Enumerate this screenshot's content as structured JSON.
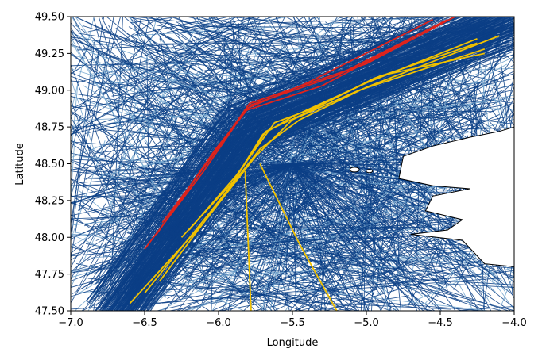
{
  "chart_data": {
    "type": "line",
    "title": "",
    "xlabel": "Longitude",
    "ylabel": "Latitude",
    "xlim": [
      -7.0,
      -4.0
    ],
    "ylim": [
      47.5,
      49.5
    ],
    "x_ticks": [
      -7.0,
      -6.5,
      -6.0,
      -5.5,
      -5.0,
      -4.5,
      -4.0
    ],
    "x_tick_labels": [
      "−7.0",
      "−6.5",
      "−6.0",
      "−5.5",
      "−5.0",
      "−4.5",
      "−4.0"
    ],
    "y_ticks": [
      47.5,
      47.75,
      48.0,
      48.25,
      48.5,
      48.75,
      49.0,
      49.25,
      49.5
    ],
    "y_tick_labels": [
      "47.50",
      "47.75",
      "48.00",
      "48.25",
      "48.50",
      "48.75",
      "49.00",
      "49.25",
      "49.50"
    ],
    "grid": false,
    "legend": "none",
    "colors": {
      "background_tracks": "#0b3f86",
      "background_tracks_light": "#6ea2cd",
      "highlight_red": "#e0231b",
      "highlight_gold": "#f2c200",
      "coastline": "#000000"
    },
    "series": [
      {
        "color": "#e0231b",
        "tracks": [
          {
            "x": [
              -6.35,
              -6.05,
              -5.8,
              -5.4,
              -4.55
            ],
            "y": [
              48.12,
              48.55,
              48.88,
              49.05,
              49.48
            ]
          },
          {
            "x": [
              -6.5,
              -6.1,
              -5.82,
              -5.3,
              -4.7
            ],
            "y": [
              47.92,
              48.45,
              48.86,
              49.03,
              49.35
            ]
          },
          {
            "x": [
              -6.42,
              -6.02,
              -5.78,
              -5.2,
              -4.45
            ],
            "y": [
              48.02,
              48.6,
              48.9,
              49.1,
              49.48
            ]
          },
          {
            "x": [
              -6.38,
              -6.08,
              -5.79,
              -5.0,
              -4.4
            ],
            "y": [
              48.1,
              48.5,
              48.91,
              49.18,
              49.5
            ]
          }
        ]
      },
      {
        "color": "#f2c200",
        "tracks": [
          {
            "x": [
              -6.25,
              -5.9,
              -5.7,
              -5.5,
              -5.0,
              -4.25
            ],
            "y": [
              48.0,
              48.38,
              48.7,
              48.82,
              49.05,
              49.35
            ]
          },
          {
            "x": [
              -6.6,
              -6.1,
              -5.75,
              -5.5,
              -5.05,
              -4.2
            ],
            "y": [
              47.55,
              48.1,
              48.55,
              48.8,
              49.0,
              49.28
            ]
          },
          {
            "x": [
              -6.5,
              -6.05,
              -5.72,
              -5.45,
              -5.0,
              -4.1
            ],
            "y": [
              47.62,
              48.18,
              48.6,
              48.8,
              49.02,
              49.37
            ]
          },
          {
            "x": [
              -6.4,
              -5.95,
              -5.68,
              -5.4,
              -4.95,
              -4.25
            ],
            "y": [
              47.7,
              48.3,
              48.72,
              48.85,
              49.08,
              49.32
            ]
          },
          {
            "x": [
              -6.2,
              -5.88,
              -5.62,
              -5.35,
              -4.9,
              -4.2
            ],
            "y": [
              48.05,
              48.42,
              48.78,
              48.88,
              49.1,
              49.25
            ]
          },
          {
            "x": [
              -5.82,
              -5.78
            ],
            "y": [
              48.45,
              47.5
            ]
          },
          {
            "x": [
              -5.72,
              -5.45,
              -5.2
            ],
            "y": [
              48.5,
              47.95,
              47.5
            ]
          }
        ]
      }
    ],
    "annotations": []
  }
}
